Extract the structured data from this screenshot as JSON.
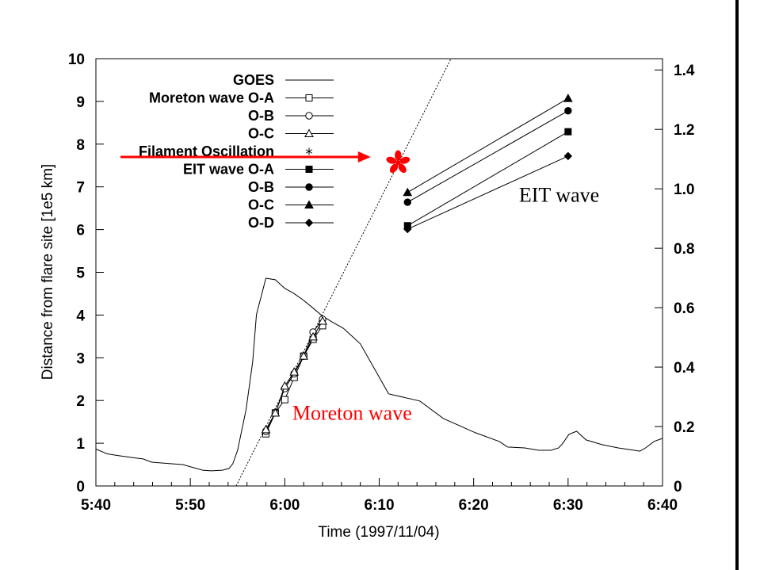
{
  "chart_data": {
    "type": "line",
    "title": "",
    "xlabel": "Time (1997/11/04)",
    "ylabel": "Distance from flare site [1e5 km]",
    "y2label": "",
    "x_unit": "minutes after 5:40 UT",
    "xlim": [
      0,
      60
    ],
    "ylim": [
      0,
      10
    ],
    "y2lim": [
      0,
      1.438
    ],
    "x_ticks": [
      {
        "value": 0,
        "label": "5:40"
      },
      {
        "value": 10,
        "label": "5:50"
      },
      {
        "value": 20,
        "label": "6:00"
      },
      {
        "value": 30,
        "label": "6:10"
      },
      {
        "value": 40,
        "label": "6:20"
      },
      {
        "value": 50,
        "label": "6:30"
      },
      {
        "value": 60,
        "label": "6:40"
      }
    ],
    "x_minor_step": 2,
    "y_ticks": [
      0,
      1,
      2,
      3,
      4,
      5,
      6,
      7,
      8,
      9,
      10
    ],
    "y2_ticks": [
      {
        "value": 0,
        "label": "0"
      },
      {
        "value": 0.2,
        "label": "0.2"
      },
      {
        "value": 0.4,
        "label": "0.4"
      },
      {
        "value": 0.6,
        "label": "0.6"
      },
      {
        "value": 0.8,
        "label": "0.8"
      },
      {
        "value": 1.0,
        "label": "1.0"
      },
      {
        "value": 1.2,
        "label": "1.2"
      },
      {
        "value": 1.4,
        "label": "1.4"
      }
    ],
    "grid": false,
    "legend_position": "top-left",
    "series": [
      {
        "name": "GOES",
        "axis": "right",
        "marker": "none",
        "style": "solid",
        "x": [
          0,
          1.2,
          2.4,
          4.2,
          5.0,
          5.9,
          6.7,
          7.9,
          9.2,
          10.4,
          11.3,
          12.2,
          13.4,
          14.1,
          14.5,
          15.0,
          15.9,
          16.6,
          17.0,
          18.0,
          19.0,
          20.0,
          20.9,
          21.9,
          22.9,
          23.9,
          25.0,
          26.2,
          27.3,
          28.0,
          31.0,
          34.3,
          36.8,
          40.2,
          42.7,
          43.6,
          45.4,
          46.9,
          48.2,
          49.0,
          49.4,
          50.1,
          50.9,
          51.9,
          53.6,
          55.3,
          57.0,
          57.6,
          58.2,
          59.1,
          60.0
        ],
        "values": [
          0.124,
          0.108,
          0.102,
          0.094,
          0.091,
          0.08,
          0.078,
          0.075,
          0.072,
          0.061,
          0.053,
          0.051,
          0.053,
          0.059,
          0.075,
          0.12,
          0.257,
          0.417,
          0.577,
          0.699,
          0.694,
          0.665,
          0.649,
          0.627,
          0.601,
          0.574,
          0.552,
          0.531,
          0.499,
          0.478,
          0.31,
          0.286,
          0.227,
          0.179,
          0.15,
          0.131,
          0.128,
          0.12,
          0.12,
          0.128,
          0.142,
          0.174,
          0.184,
          0.155,
          0.139,
          0.128,
          0.12,
          0.117,
          0.128,
          0.15,
          0.16
        ]
      },
      {
        "name": "Moreton wave O-A",
        "legend_label": "Moreton wave O-A",
        "axis": "left",
        "marker": "open-square",
        "x": [
          18,
          19,
          20,
          21,
          22,
          23,
          24
        ],
        "values": [
          1.22,
          1.71,
          2.02,
          2.54,
          3.04,
          3.43,
          3.75
        ]
      },
      {
        "name": "Moreton wave O-B",
        "legend_label": "O-B",
        "axis": "left",
        "marker": "open-circle",
        "x": [
          18,
          19,
          20,
          21,
          22,
          23,
          24
        ],
        "values": [
          1.28,
          1.71,
          2.28,
          2.63,
          3.04,
          3.6,
          3.9
        ]
      },
      {
        "name": "Moreton wave O-C",
        "legend_label": "O-C",
        "axis": "left",
        "marker": "open-triangle",
        "x": [
          18,
          19,
          20,
          21,
          22,
          23,
          24
        ],
        "values": [
          1.32,
          1.71,
          2.34,
          2.67,
          3.04,
          3.49,
          3.86
        ]
      },
      {
        "name": "Filament Oscillation",
        "legend_label": "Filament Oscillation",
        "axis": "left",
        "marker": "asterisk",
        "line": false,
        "x": [
          32
        ],
        "values": [
          7.57
        ]
      },
      {
        "name": "EIT wave O-A",
        "legend_label": "EIT wave O-A",
        "axis": "left",
        "marker": "filled-square",
        "x": [
          33,
          50
        ],
        "values": [
          6.09,
          8.29
        ]
      },
      {
        "name": "EIT wave O-B",
        "legend_label": "O-B",
        "axis": "left",
        "marker": "filled-circle",
        "x": [
          33,
          50
        ],
        "values": [
          6.64,
          8.78
        ]
      },
      {
        "name": "EIT wave O-C",
        "legend_label": "O-C",
        "axis": "left",
        "marker": "filled-triangle",
        "x": [
          33,
          50
        ],
        "values": [
          6.87,
          9.07
        ]
      },
      {
        "name": "EIT wave O-D",
        "legend_label": "O-D",
        "axis": "left",
        "marker": "filled-diamond",
        "x": [
          33,
          50
        ],
        "values": [
          6.01,
          7.72
        ]
      }
    ],
    "fit_line": {
      "name": "Moreton wave linear fit",
      "style": "dotted",
      "axis": "left",
      "x": [
        14.85,
        37.6
      ],
      "values": [
        0,
        10
      ]
    },
    "annotations": [
      {
        "text": "Moreton wave",
        "x": 20.8,
        "y": 1.55,
        "color": "#ff0000"
      },
      {
        "text": "EIT wave",
        "x": 44.8,
        "y": 6.65,
        "color": "#000000"
      },
      {
        "type": "arrow",
        "from": [
          2.6,
          7.7
        ],
        "to": [
          29.1,
          7.7
        ],
        "color": "#ff0000"
      },
      {
        "type": "marker",
        "marker": "asterisk",
        "x": 32,
        "y": 7.57,
        "color": "#ff0000"
      }
    ]
  }
}
